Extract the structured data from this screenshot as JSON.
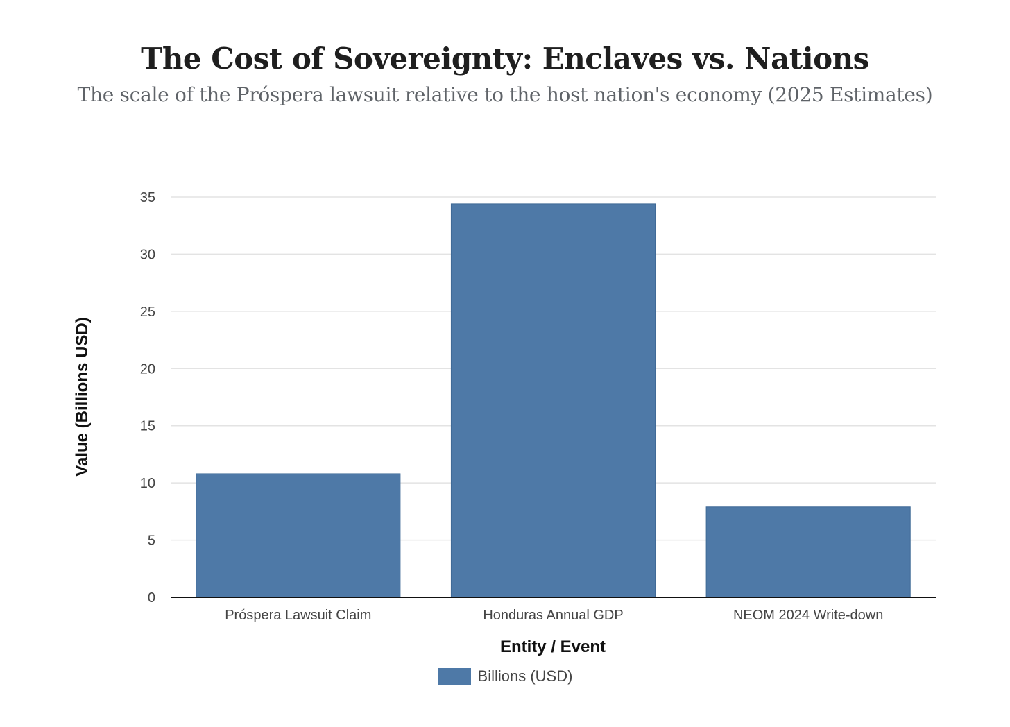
{
  "chart_data": {
    "type": "bar",
    "title": "The Cost of Sovereignty: Enclaves vs. Nations",
    "subtitle": "The scale of the Próspera lawsuit relative to the host nation's economy (2025 Estimates)",
    "xlabel": "Entity / Event",
    "ylabel": "Value (Billions USD)",
    "categories": [
      "Próspera Lawsuit Claim",
      "Honduras Annual GDP",
      "NEOM 2024 Write-down"
    ],
    "series": [
      {
        "name": "Billions (USD)",
        "values": [
          10.8,
          34.4,
          7.9
        ],
        "color": "#4e79a7"
      }
    ],
    "ylim": [
      0,
      35
    ],
    "yticks": [
      0,
      5,
      10,
      15,
      20,
      25,
      30,
      35
    ],
    "grid": true,
    "legend_position": "bottom"
  }
}
